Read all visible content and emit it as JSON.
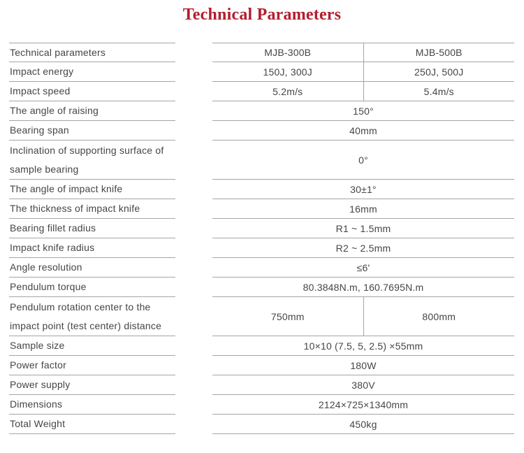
{
  "title": "Technical Parameters",
  "colors": {
    "title_red": "#b21e2e",
    "text_gray": "#454545",
    "line_gray": "#a5a5a5"
  },
  "table": {
    "models": [
      "MJB-300B",
      "MJB-500B"
    ],
    "rows": [
      {
        "label": "Technical parameters",
        "values": [
          "MJB-300B",
          "MJB-500B"
        ]
      },
      {
        "label": "Impact energy",
        "values": [
          "150J, 300J",
          "250J, 500J"
        ]
      },
      {
        "label": "Impact speed",
        "values": [
          "5.2m/s",
          "5.4m/s"
        ]
      },
      {
        "label": "The angle of raising",
        "value": "150°"
      },
      {
        "label": "Bearing span",
        "value": "40mm"
      },
      {
        "label": "Inclination of supporting surface of sample bearing",
        "value": "0°"
      },
      {
        "label": "The angle of impact knife",
        "value": "30±1°"
      },
      {
        "label": "The thickness of impact knife",
        "value": "16mm"
      },
      {
        "label": "Bearing fillet radius",
        "value": "R1 ~ 1.5mm"
      },
      {
        "label": "Impact knife radius",
        "value": "R2 ~ 2.5mm"
      },
      {
        "label": "Angle resolution",
        "value": "≤6'"
      },
      {
        "label": "Pendulum torque",
        "value": "80.3848N.m, 160.7695N.m"
      },
      {
        "label": "Pendulum rotation center to the impact point (test center) distance",
        "values": [
          "750mm",
          "800mm"
        ]
      },
      {
        "label": "Sample size",
        "value": "10×10 (7.5, 5, 2.5) ×55mm"
      },
      {
        "label": "Power factor",
        "value": "180W"
      },
      {
        "label": "Power supply",
        "value": "380V"
      },
      {
        "label": "Dimensions",
        "value": "2124×725×1340mm"
      },
      {
        "label": "Total Weight",
        "value": "450kg"
      }
    ]
  }
}
